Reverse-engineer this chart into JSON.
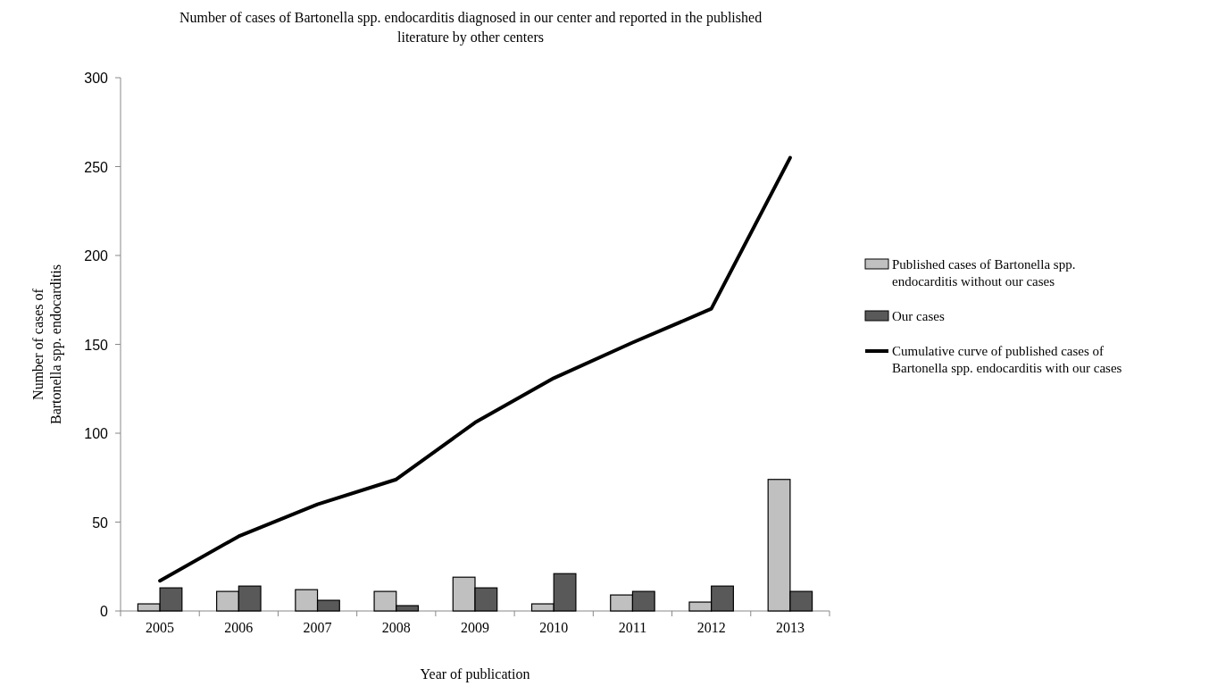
{
  "chart_data": {
    "type": "bar",
    "title": "Number of cases of Bartonella spp. endocarditis diagnosed in our center and reported in the published literature by other centers",
    "xlabel": "Year of publication",
    "ylabel": "Number of cases of Bartonella spp. endocarditis",
    "categories": [
      "2005",
      "2006",
      "2007",
      "2008",
      "2009",
      "2010",
      "2011",
      "2012",
      "2013"
    ],
    "series": [
      {
        "name": "Published cases of Bartonella spp. endocarditis without our cases",
        "color": "#c0c0c0",
        "values": [
          4,
          11,
          12,
          11,
          19,
          4,
          9,
          5,
          74
        ]
      },
      {
        "name": "Our cases",
        "color": "#595959",
        "values": [
          13,
          14,
          6,
          3,
          13,
          21,
          11,
          14,
          11
        ]
      },
      {
        "name": "Cumulative curve of published cases of Bartonella spp. endocarditis with our cases",
        "type": "line",
        "color": "#000000",
        "values": [
          17,
          42,
          60,
          74,
          106,
          131,
          151,
          170,
          255
        ]
      }
    ],
    "ylim": [
      0,
      300
    ],
    "yticks": [
      0,
      50,
      100,
      150,
      200,
      250,
      300
    ],
    "legend": "right"
  }
}
